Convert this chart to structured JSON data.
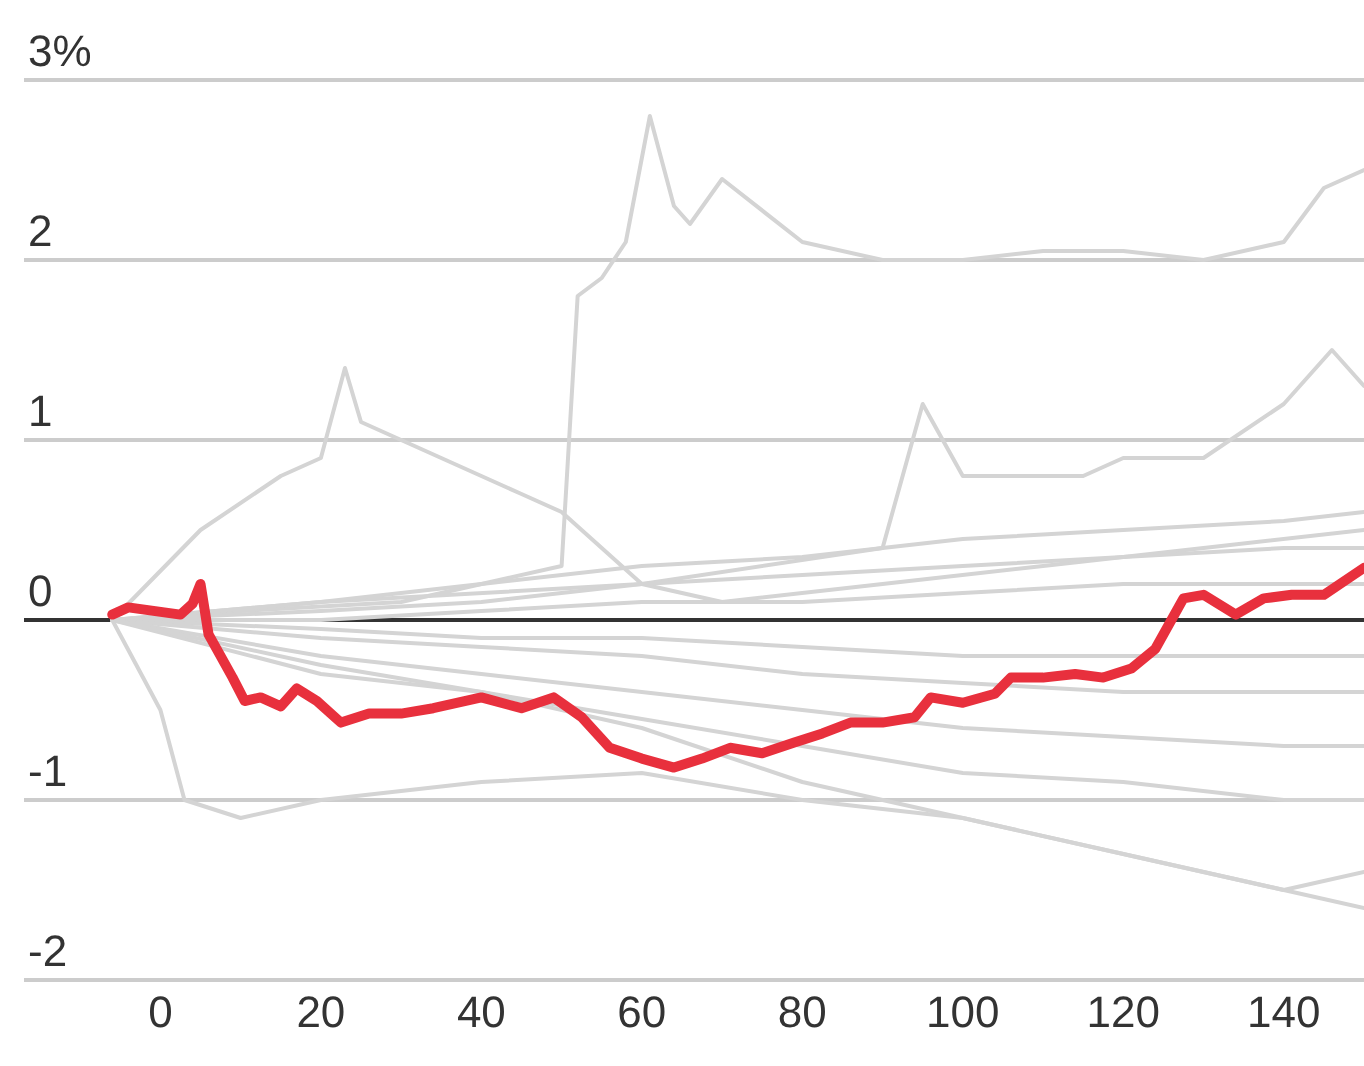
{
  "chart_data": {
    "type": "line",
    "xlim": [
      -17,
      150
    ],
    "xticks": [
      0,
      20,
      40,
      60,
      80,
      100,
      120,
      140
    ],
    "ylim": [
      -2,
      3
    ],
    "yticks": [
      {
        "value": 3,
        "label": "3%"
      },
      2,
      1,
      0,
      -1,
      -2
    ],
    "grid": "y",
    "marker": "none",
    "line_style": "solid",
    "ref_lines": [
      {
        "axis": "y",
        "value": 0,
        "label": null,
        "color": "#333333"
      }
    ],
    "series": [
      {
        "color": "#d4d4d4",
        "x": [
          -6,
          10,
          30,
          50,
          52,
          55,
          58,
          61,
          64,
          66,
          70,
          80,
          90,
          100,
          110,
          120,
          130,
          140,
          145,
          150
        ],
        "values": [
          0,
          0.05,
          0.1,
          0.3,
          1.8,
          1.9,
          2.1,
          2.8,
          2.3,
          2.2,
          2.45,
          2.1,
          2.0,
          2.0,
          2.05,
          2.05,
          2.0,
          2.1,
          2.4,
          2.5
        ]
      },
      {
        "color": "#d4d4d4",
        "x": [
          -6,
          5,
          15,
          20,
          23,
          25,
          35,
          45,
          50,
          55,
          60,
          70,
          90,
          110,
          130,
          150
        ],
        "values": [
          0,
          0.5,
          0.8,
          0.9,
          1.4,
          1.1,
          0.9,
          0.7,
          0.6,
          0.4,
          0.2,
          0.1,
          0.2,
          0.3,
          0.4,
          0.5
        ]
      },
      {
        "color": "#d4d4d4",
        "x": [
          -6,
          20,
          60,
          90,
          95,
          100,
          115,
          120,
          130,
          140,
          146,
          150
        ],
        "values": [
          0,
          0.1,
          0.2,
          0.4,
          1.2,
          0.8,
          0.8,
          0.9,
          0.9,
          1.2,
          1.5,
          1.3
        ]
      },
      {
        "color": "#d4d4d4",
        "x": [
          -6,
          0,
          3,
          10,
          20,
          40,
          60,
          80,
          100,
          120,
          140,
          150
        ],
        "values": [
          0,
          -0.5,
          -1.0,
          -1.1,
          -1.0,
          -0.9,
          -0.85,
          -1.0,
          -1.1,
          -1.3,
          -1.5,
          -1.4
        ]
      },
      {
        "color": "#d4d4d4",
        "x": [
          -6,
          20,
          40,
          60,
          80,
          100,
          120,
          140,
          150
        ],
        "values": [
          0,
          -0.3,
          -0.4,
          -0.6,
          -0.9,
          -1.1,
          -1.3,
          -1.5,
          -1.6
        ]
      },
      {
        "color": "#d4d4d4",
        "x": [
          -6,
          20,
          40,
          60,
          80,
          100,
          120,
          140,
          150
        ],
        "values": [
          0,
          0.1,
          0.2,
          0.3,
          0.35,
          0.45,
          0.5,
          0.55,
          0.6
        ]
      },
      {
        "color": "#d4d4d4",
        "x": [
          -6,
          20,
          40,
          60,
          80,
          100,
          120,
          140,
          150
        ],
        "values": [
          0,
          0.05,
          0.1,
          0.2,
          0.25,
          0.3,
          0.35,
          0.4,
          0.4
        ]
      },
      {
        "color": "#d4d4d4",
        "x": [
          -6,
          20,
          40,
          60,
          80,
          100,
          120,
          140,
          150
        ],
        "values": [
          0,
          0.0,
          0.05,
          0.1,
          0.1,
          0.15,
          0.2,
          0.2,
          0.2
        ]
      },
      {
        "color": "#d4d4d4",
        "x": [
          -6,
          20,
          40,
          60,
          80,
          100,
          120,
          140,
          150
        ],
        "values": [
          0,
          -0.05,
          -0.1,
          -0.1,
          -0.15,
          -0.2,
          -0.2,
          -0.2,
          -0.2
        ]
      },
      {
        "color": "#d4d4d4",
        "x": [
          -6,
          20,
          40,
          60,
          80,
          100,
          120,
          140,
          150
        ],
        "values": [
          0,
          -0.1,
          -0.15,
          -0.2,
          -0.3,
          -0.35,
          -0.4,
          -0.4,
          -0.4
        ]
      },
      {
        "color": "#d4d4d4",
        "x": [
          -6,
          20,
          40,
          60,
          80,
          100,
          120,
          140,
          150
        ],
        "values": [
          0,
          -0.2,
          -0.3,
          -0.4,
          -0.5,
          -0.6,
          -0.65,
          -0.7,
          -0.7
        ]
      },
      {
        "color": "#d4d4d4",
        "x": [
          -6,
          20,
          40,
          60,
          80,
          100,
          120,
          140,
          150
        ],
        "values": [
          0,
          -0.25,
          -0.4,
          -0.55,
          -0.7,
          -0.85,
          -0.9,
          -1.0,
          -1.0
        ]
      },
      {
        "color": "#e8303d",
        "x": [
          -6,
          -4,
          2.5,
          4,
          5,
          6,
          9,
          10.5,
          12.5,
          15,
          17,
          19.5,
          22.5,
          26,
          30,
          34,
          40,
          45,
          49,
          52.5,
          56,
          60,
          64,
          67.5,
          71,
          75,
          79,
          82.5,
          86,
          90,
          94,
          96,
          100,
          104,
          106,
          110,
          114,
          117.5,
          121,
          124,
          127.5,
          130,
          134,
          137.5,
          141,
          145,
          150
        ],
        "values": [
          0.03,
          0.07,
          0.03,
          0.09,
          0.2,
          -0.08,
          -0.32,
          -0.45,
          -0.43,
          -0.48,
          -0.38,
          -0.45,
          -0.57,
          -0.52,
          -0.52,
          -0.49,
          -0.43,
          -0.49,
          -0.43,
          -0.54,
          -0.71,
          -0.77,
          -0.82,
          -0.77,
          -0.71,
          -0.74,
          -0.68,
          -0.63,
          -0.57,
          -0.57,
          -0.54,
          -0.43,
          -0.46,
          -0.41,
          -0.32,
          -0.32,
          -0.3,
          -0.32,
          -0.27,
          -0.16,
          0.12,
          0.14,
          0.03,
          0.12,
          0.14,
          0.14,
          0.29
        ]
      }
    ]
  }
}
